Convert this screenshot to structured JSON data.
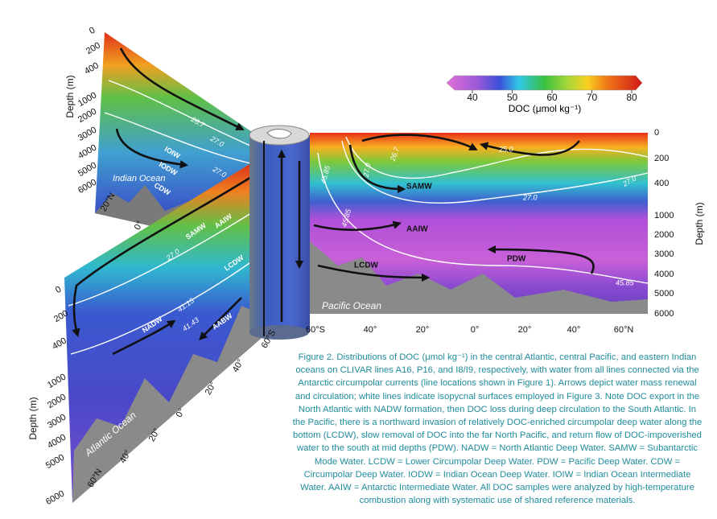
{
  "colorbar": {
    "ticks": [
      40,
      50,
      60,
      70,
      80
    ],
    "label": "DOC (μmol kg⁻¹)"
  },
  "pacific": {
    "depth_label": "Depth (m)",
    "depth_ticks": [
      "0",
      "200",
      "400",
      "1000",
      "2000",
      "3000",
      "4000",
      "5000",
      "6000"
    ],
    "lat_ticks": [
      "60°S",
      "40°",
      "20°",
      "0°",
      "20°",
      "40°",
      "60°N"
    ],
    "ocean": "Pacific Ocean",
    "water_masses": [
      "SAMW",
      "AAIW",
      "LCDW",
      "PDW"
    ],
    "isopycnals": [
      "25.0",
      "26.7",
      "27.0",
      "27.0",
      "27.0",
      "45.85",
      "45.85",
      "45.85"
    ]
  },
  "atlantic": {
    "depth_label": "Depth (m)",
    "depth_ticks": [
      "0",
      "200",
      "400",
      "1000",
      "2000",
      "3000",
      "4000",
      "5000",
      "6000"
    ],
    "lat_ticks": [
      "60°S",
      "40°",
      "20°",
      "0°",
      "20°",
      "40°",
      "60°N"
    ],
    "ocean": "Atlantic Ocean",
    "water_masses": [
      "SAMW",
      "AAIW",
      "LCDW",
      "NADW",
      "AABW"
    ],
    "isopycnals": [
      "27.0",
      "41.15",
      "41.43"
    ]
  },
  "indian": {
    "depth_label": "Depth (m)",
    "depth_ticks": [
      "0",
      "200",
      "400",
      "1000",
      "2000",
      "3000",
      "4000",
      "5000",
      "6000"
    ],
    "lat_ticks": [
      "20°N",
      "0°"
    ],
    "ocean": "Indian Ocean",
    "water_masses": [
      "IOIW",
      "IODW",
      "CDW"
    ],
    "isopycnals": [
      "26.7",
      "27.0",
      "27.0"
    ]
  },
  "caption": "Figure 2. Distributions of DOC (μmol kg⁻¹) in the central Atlantic, central Pacific, and eastern Indian oceans on CLIVAR lines A16, P16, and I8/I9, respectively, with water from all lines connected via the Antarctic circumpolar currents (line locations shown in Figure 1). Arrows depict water mass renewal and circulation; white lines indicate isopycnal surfaces employed in Figure 3. Note DOC export in the North Atlantic with NADW formation, then DOC loss during deep circulation to the South Atlantic. In the Pacific, there is a northward invasion of relatively DOC-enriched circumpolar deep water along the bottom (LCDW), slow removal of DOC into the far North Pacific, and return flow of DOC-impoverished water to the south at mid depths (PDW). NADW = North Atlantic Deep Water. SAMW = Subantarctic Mode Water. LCDW = Lower Circumpolar Deep Water. PDW = Pacific Deep Water. CDW = Circumpolar Deep Water. IODW = Indian Ocean Deep Water. IOIW = Indian Ocean Intermediate Water. AAIW = Antarctic Intermediate Water. All DOC samples were analyzed by high-temperature combustion along with systematic use of shared reference materials."
}
